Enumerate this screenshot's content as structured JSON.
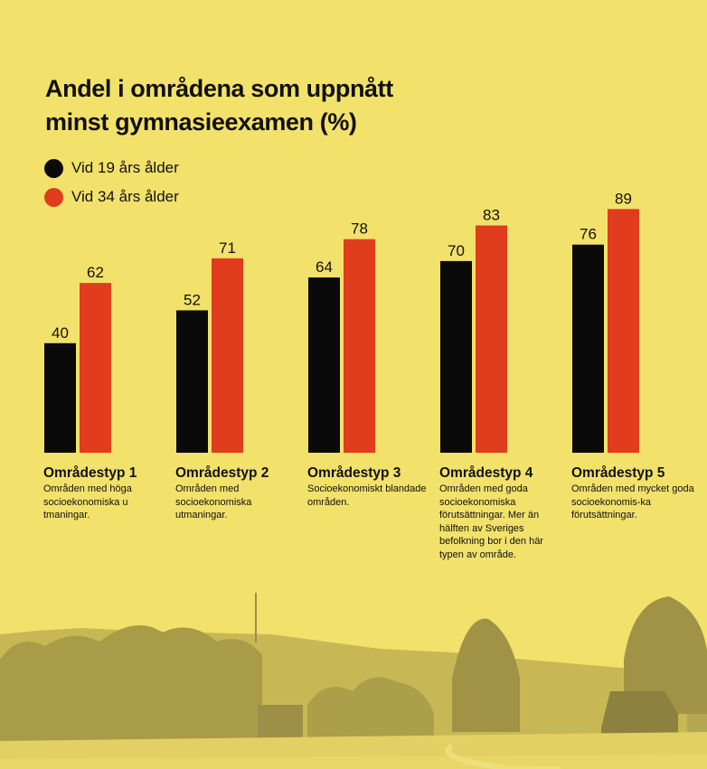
{
  "title_line1": "Andel i områdena som uppnått",
  "title_line2": "minst gymnasieexamen (%)",
  "colors": {
    "background": "#f2e16b",
    "series1": "#0a0a0a",
    "series2": "#e03c1e"
  },
  "legend": [
    {
      "label": "Vid 19 års ålder",
      "color": "#0a0a0a"
    },
    {
      "label": "Vid 34 års ålder",
      "color": "#e03c1e"
    }
  ],
  "categories": [
    {
      "title": "Områdestyp 1",
      "description": "Områden med höga socioekonomiska u tmaningar."
    },
    {
      "title": "Områdestyp 2",
      "description": "Områden med socioekonomiska utmaningar."
    },
    {
      "title": "Områdestyp 3",
      "description": "Socioekonomiskt blandade områden."
    },
    {
      "title": "Områdestyp 4",
      "description": "Områden med goda socioekonomiska förutsättningar. Mer än hälften av Sveriges befolkning bor i den här typen av område."
    },
    {
      "title": "Områdestyp 5",
      "description": "Områden med mycket goda socioekonomis-ka förutsättningar."
    }
  ],
  "chart_data": {
    "type": "bar",
    "title": "Andel i områdena som uppnått minst gymnasieexamen (%)",
    "xlabel": "",
    "ylabel": "",
    "ylim": [
      0,
      100
    ],
    "grid": false,
    "legend_position": "top-left",
    "categories": [
      "Områdestyp 1",
      "Områdestyp 2",
      "Områdestyp 3",
      "Områdestyp 4",
      "Områdestyp 5"
    ],
    "series": [
      {
        "name": "Vid 19 års ålder",
        "color": "#0a0a0a",
        "values": [
          40,
          52,
          64,
          70,
          76
        ]
      },
      {
        "name": "Vid 34 års ålder",
        "color": "#e03c1e",
        "values": [
          62,
          71,
          78,
          83,
          89
        ]
      }
    ]
  }
}
